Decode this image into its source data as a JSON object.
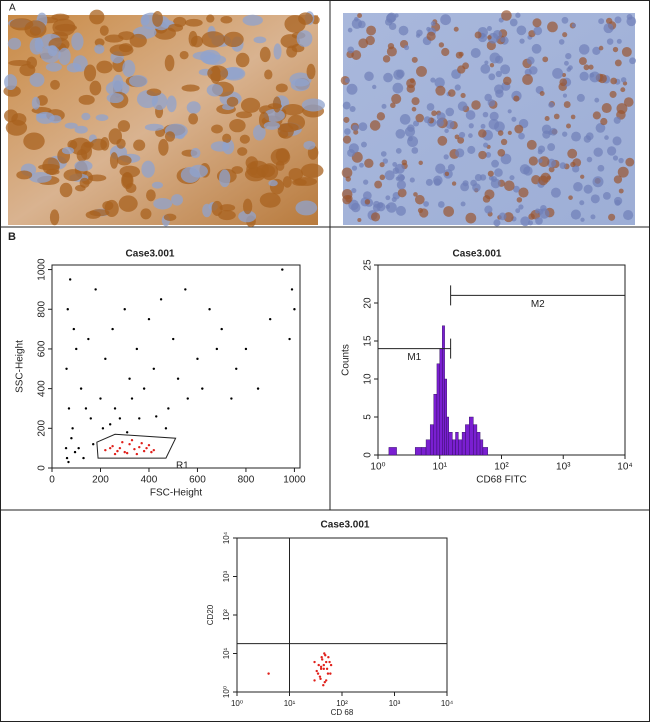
{
  "panel_labels": [
    "A",
    "B"
  ],
  "chart_data": [
    {
      "type": "scatter",
      "title": "Case3.001",
      "xlabel": "FSC-Height",
      "ylabel": "SSC-Height",
      "xlim": [
        0,
        1023
      ],
      "ylim": [
        0,
        1023
      ],
      "xticks": [
        0,
        200,
        400,
        600,
        800,
        1000
      ],
      "yticks": [
        0,
        200,
        400,
        600,
        800,
        1000
      ],
      "series": [
        {
          "color": "#000000",
          "x": [
            60,
            70,
            80,
            65,
            90,
            100,
            120,
            75,
            85,
            150,
            180,
            200,
            220,
            250,
            300,
            320,
            350,
            400,
            450,
            500,
            550,
            600,
            650,
            700,
            800,
            900,
            950,
            260,
            280,
            330,
            380,
            420,
            480,
            520,
            560,
            620,
            680,
            740,
            160,
            140,
            110,
            95,
            130,
            170,
            210,
            240,
            310,
            360,
            430,
            470,
            760,
            850,
            980,
            990,
            1000,
            58,
            62,
            68
          ],
          "values": [
            500,
            300,
            150,
            800,
            700,
            600,
            400,
            950,
            200,
            650,
            900,
            350,
            550,
            700,
            800,
            450,
            600,
            750,
            850,
            650,
            900,
            550,
            800,
            700,
            600,
            750,
            1000,
            300,
            250,
            350,
            400,
            500,
            300,
            450,
            350,
            400,
            600,
            350,
            250,
            300,
            100,
            80,
            50,
            120,
            200,
            220,
            180,
            250,
            260,
            200,
            500,
            400,
            650,
            900,
            800,
            100,
            50,
            30
          ]
        },
        {
          "color": "#e0201b",
          "x": [
            220,
            250,
            280,
            300,
            320,
            340,
            360,
            380,
            400,
            420,
            260,
            290,
            310,
            330,
            350,
            370,
            390,
            410,
            240,
            270
          ],
          "values": [
            90,
            110,
            100,
            80,
            120,
            95,
            105,
            85,
            115,
            90,
            70,
            130,
            75,
            140,
            70,
            125,
            100,
            80,
            100,
            85
          ]
        }
      ],
      "gate": {
        "label": "R1",
        "x": [
          190,
          185,
          260,
          510,
          470
        ],
        "y": [
          50,
          130,
          170,
          150,
          50
        ]
      }
    },
    {
      "type": "histogram",
      "title": "Case3.001",
      "xlabel": "CD68 FITC",
      "ylabel": "Counts",
      "xscale": "log",
      "xlim": [
        1,
        10000
      ],
      "ylim": [
        0,
        25
      ],
      "xticks": [
        {
          "value": 1,
          "label": "10⁰"
        },
        {
          "value": 10,
          "label": "10¹"
        },
        {
          "value": 100,
          "label": "10²"
        },
        {
          "value": 1000,
          "label": "10³"
        },
        {
          "value": 10000,
          "label": "10⁴"
        }
      ],
      "yticks": [
        0,
        5,
        10,
        15,
        20,
        25
      ],
      "color": "#7a1fd1",
      "bins": [
        1.5,
        2,
        3,
        4,
        5,
        6,
        7,
        8,
        9,
        10,
        11,
        12,
        13,
        14,
        16,
        18,
        20,
        23,
        26,
        30,
        35,
        40,
        45,
        50,
        60,
        70
      ],
      "counts": [
        1,
        0,
        0,
        1,
        1,
        2,
        4,
        8,
        12,
        14,
        17,
        10,
        5,
        3,
        2,
        3,
        2,
        3,
        4,
        5,
        4,
        3,
        2,
        1,
        0
      ],
      "markers": [
        {
          "label": "M1",
          "range": [
            1,
            15
          ],
          "level": 14
        },
        {
          "label": "M2",
          "range": [
            15,
            10000
          ],
          "level": 21
        }
      ]
    },
    {
      "type": "scatter",
      "title": "Case3.001",
      "xlabel": "CD 68",
      "ylabel": "CD20",
      "xscale": "log",
      "yscale": "log",
      "xlim": [
        1,
        10000
      ],
      "ylim": [
        1,
        10000
      ],
      "xticks": [
        {
          "value": 1,
          "label": "10⁰"
        },
        {
          "value": 10,
          "label": "10¹"
        },
        {
          "value": 100,
          "label": "10²"
        },
        {
          "value": 1000,
          "label": "10³"
        },
        {
          "value": 10000,
          "label": "10⁴"
        }
      ],
      "yticks": [
        {
          "value": 1,
          "label": "10⁰"
        },
        {
          "value": 10,
          "label": "10¹"
        },
        {
          "value": 100,
          "label": "10²"
        },
        {
          "value": 1000,
          "label": "10³"
        },
        {
          "value": 10000,
          "label": "10⁴"
        }
      ],
      "quadrant": {
        "x": 10,
        "y": 18
      },
      "series": [
        {
          "color": "#e0201b",
          "x": [
            30,
            35,
            40,
            45,
            50,
            55,
            60,
            38,
            42,
            48,
            52,
            36,
            44,
            58,
            33,
            46,
            50,
            40,
            62,
            47,
            30,
            54,
            41,
            39,
            45,
            4
          ],
          "values": [
            2,
            3,
            4,
            5,
            6,
            8,
            3,
            2.5,
            7,
            9,
            4,
            5,
            1.5,
            6,
            3.5,
            10,
            2,
            4.5,
            5,
            1.8,
            6,
            3,
            8,
            2.2,
            4,
            3
          ]
        }
      ]
    }
  ]
}
